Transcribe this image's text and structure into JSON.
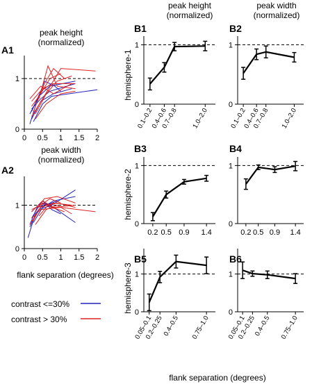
{
  "colors": {
    "low": "#2222bb",
    "high": "#dd2222",
    "axis": "#000000",
    "ref": "#000000"
  },
  "figure": {
    "col_titles": {
      "height": "peak height\n(normalized)",
      "width": "peak width\n(normalized)"
    },
    "row_titles": [
      "hemisphere-1",
      "hemisphere-2",
      "hemisphere-3"
    ],
    "xlabel_left": "flank separation (degrees)",
    "xlabel_right": "flank separation (degrees)",
    "legend": [
      {
        "label": "contrast <=30%",
        "color": "#2222bb"
      },
      {
        "label": "contrast  > 30%",
        "color": "#dd2222"
      }
    ]
  },
  "chart_data": [
    {
      "id": "A1",
      "label": "A1",
      "type": "line",
      "title": "peak height\n(normalized)",
      "xlim": [
        0,
        2
      ],
      "ylim": [
        0,
        1.4
      ],
      "xticks": [
        0,
        0.5,
        1,
        1.5,
        2
      ],
      "xtick_labels": [
        "0",
        "0.5",
        "1",
        "1.5",
        "2"
      ],
      "yticks": [
        0,
        1
      ],
      "ytick_labels": [
        "0",
        "1"
      ],
      "ref": 1,
      "series": [
        {
          "group": "low",
          "x": [
            0.15,
            0.4,
            0.7,
            1.4
          ],
          "y": [
            0.3,
            0.65,
            0.85,
            0.95
          ]
        },
        {
          "group": "low",
          "x": [
            0.2,
            0.45,
            0.8,
            1.3
          ],
          "y": [
            0.2,
            0.55,
            0.7,
            0.8
          ]
        },
        {
          "group": "low",
          "x": [
            0.25,
            0.5,
            0.75,
            2.0
          ],
          "y": [
            0.15,
            0.5,
            0.65,
            0.78
          ]
        },
        {
          "group": "low",
          "x": [
            0.2,
            0.45,
            0.75,
            1.0
          ],
          "y": [
            0.35,
            0.75,
            0.9,
            0.75
          ]
        },
        {
          "group": "low",
          "x": [
            0.15,
            0.3,
            0.55,
            0.85
          ],
          "y": [
            0.1,
            0.45,
            0.95,
            0.85
          ]
        },
        {
          "group": "low",
          "x": [
            0.2,
            0.45,
            0.7,
            1.4
          ],
          "y": [
            0.4,
            0.6,
            0.75,
            0.9
          ]
        },
        {
          "group": "high",
          "x": [
            0.2,
            0.5,
            0.8,
            1.4
          ],
          "y": [
            0.55,
            0.8,
            0.9,
            0.9
          ]
        },
        {
          "group": "high",
          "x": [
            0.3,
            0.6,
            0.9,
            1.3
          ],
          "y": [
            0.3,
            0.7,
            0.95,
            1.05
          ]
        },
        {
          "group": "high",
          "x": [
            0.2,
            0.45,
            0.7,
            1.0
          ],
          "y": [
            0.45,
            0.7,
            1.0,
            1.1
          ]
        },
        {
          "group": "high",
          "x": [
            0.25,
            0.55,
            0.8,
            1.1
          ],
          "y": [
            0.35,
            0.9,
            1.2,
            1.0
          ]
        },
        {
          "group": "high",
          "x": [
            0.4,
            0.65,
            0.9,
            1.4
          ],
          "y": [
            0.6,
            1.25,
            0.85,
            0.8
          ]
        },
        {
          "group": "high",
          "x": [
            0.2,
            0.5,
            1.0,
            1.95
          ],
          "y": [
            0.25,
            0.6,
            1.2,
            1.15
          ]
        },
        {
          "group": "high",
          "x": [
            0.3,
            0.6,
            1.0,
            1.4
          ],
          "y": [
            0.2,
            0.5,
            0.7,
            0.75
          ]
        },
        {
          "group": "high",
          "x": [
            0.15,
            0.45,
            0.8,
            1.3
          ],
          "y": [
            0.6,
            0.85,
            0.7,
            0.9
          ]
        }
      ]
    },
    {
      "id": "A2",
      "label": "A2",
      "type": "line",
      "title": "peak width\n(normalized)",
      "xlim": [
        0,
        2
      ],
      "ylim": [
        0,
        1.6
      ],
      "xticks": [
        0,
        0.5,
        1,
        1.5,
        2
      ],
      "xtick_labels": [
        "0",
        "0.5",
        "1",
        "1.5",
        "2"
      ],
      "yticks": [
        0,
        1
      ],
      "ytick_labels": [
        "0",
        "1"
      ],
      "ref": 1,
      "series": [
        {
          "group": "low",
          "x": [
            0.15,
            0.4,
            0.75,
            1.4
          ],
          "y": [
            0.5,
            0.9,
            1.0,
            1.35
          ]
        },
        {
          "group": "low",
          "x": [
            0.2,
            0.45,
            0.8,
            1.4
          ],
          "y": [
            0.7,
            1.05,
            0.95,
            0.6
          ]
        },
        {
          "group": "low",
          "x": [
            0.2,
            0.5,
            0.75,
            1.0
          ],
          "y": [
            0.85,
            1.1,
            0.9,
            0.8
          ]
        },
        {
          "group": "low",
          "x": [
            0.1,
            0.3,
            0.55,
            0.8
          ],
          "y": [
            0.25,
            0.8,
            1.05,
            0.95
          ]
        },
        {
          "group": "low",
          "x": [
            0.25,
            0.5,
            0.8,
            1.4
          ],
          "y": [
            0.6,
            0.95,
            1.1,
            1.2
          ]
        },
        {
          "group": "low",
          "x": [
            0.15,
            0.35,
            0.6,
            0.9
          ],
          "y": [
            0.55,
            0.95,
            1.0,
            1.1
          ]
        },
        {
          "group": "high",
          "x": [
            0.2,
            0.45,
            0.7,
            1.0
          ],
          "y": [
            0.9,
            1.0,
            1.15,
            1.05
          ]
        },
        {
          "group": "high",
          "x": [
            0.3,
            0.6,
            0.9,
            1.3
          ],
          "y": [
            0.55,
            0.9,
            1.0,
            0.8
          ]
        },
        {
          "group": "high",
          "x": [
            0.2,
            0.5,
            0.8,
            1.4
          ],
          "y": [
            0.85,
            1.1,
            0.95,
            1.0
          ]
        },
        {
          "group": "high",
          "x": [
            0.25,
            0.5,
            0.75,
            1.1
          ],
          "y": [
            0.65,
            1.05,
            0.95,
            0.85
          ]
        },
        {
          "group": "high",
          "x": [
            0.3,
            0.55,
            0.9,
            1.4
          ],
          "y": [
            0.85,
            1.15,
            1.2,
            1.05
          ]
        },
        {
          "group": "high",
          "x": [
            0.2,
            0.45,
            1.0,
            1.95
          ],
          "y": [
            0.7,
            0.9,
            0.95,
            0.85
          ]
        },
        {
          "group": "high",
          "x": [
            0.15,
            0.45,
            0.8,
            1.3
          ],
          "y": [
            0.55,
            0.95,
            1.05,
            1.0
          ]
        },
        {
          "group": "high",
          "x": [
            0.4,
            0.65,
            0.9,
            1.4
          ],
          "y": [
            0.75,
            1.0,
            1.05,
            0.95
          ]
        }
      ]
    },
    {
      "id": "B1",
      "label": "B1",
      "type": "line",
      "categories": [
        "0.1–0.2",
        "0.4–0.6",
        "0.7–0.8",
        "1.0–2.0"
      ],
      "x": [
        0.15,
        0.5,
        0.75,
        1.5
      ],
      "xlim": [
        0,
        1.75
      ],
      "ylim": [
        0,
        1.1
      ],
      "values": [
        0.34,
        0.62,
        0.97,
        0.98
      ],
      "err": [
        0.1,
        0.08,
        0.07,
        0.08
      ],
      "yticks": [
        0,
        1
      ],
      "ytick_labels": [
        "0",
        "1"
      ],
      "ref": 1,
      "rotate_ticks": true
    },
    {
      "id": "B2",
      "label": "B2",
      "type": "line",
      "categories": [
        "0.1–0.2",
        "0.4–0.6",
        "0.7–0.8",
        "1.0–2.0"
      ],
      "x": [
        0.15,
        0.5,
        0.75,
        1.5
      ],
      "xlim": [
        0,
        1.75
      ],
      "ylim": [
        0,
        1.1
      ],
      "values": [
        0.52,
        0.84,
        0.88,
        0.79
      ],
      "err": [
        0.1,
        0.09,
        0.1,
        0.08
      ],
      "yticks": [
        0,
        1
      ],
      "ytick_labels": [
        "0",
        "1"
      ],
      "ref": 1,
      "rotate_ticks": true
    },
    {
      "id": "B3",
      "label": "B3",
      "type": "line",
      "categories": [
        "0.2",
        "0.5",
        "0.9",
        "1.4"
      ],
      "x": [
        0.2,
        0.5,
        0.9,
        1.4
      ],
      "xlim": [
        0,
        1.6
      ],
      "ylim": [
        0,
        1.1
      ],
      "values": [
        0.12,
        0.5,
        0.72,
        0.78
      ],
      "err": [
        0.07,
        0.06,
        0.04,
        0.05
      ],
      "yticks": [
        0,
        1
      ],
      "ytick_labels": [
        "0",
        "1"
      ],
      "ref": 1,
      "rotate_ticks": false
    },
    {
      "id": "B4",
      "label": "B4",
      "type": "line",
      "categories": [
        "0.2",
        "0.5",
        "0.9",
        "1.4"
      ],
      "x": [
        0.2,
        0.5,
        0.9,
        1.4
      ],
      "xlim": [
        0,
        1.6
      ],
      "ylim": [
        0,
        1.1
      ],
      "values": [
        0.68,
        0.97,
        0.93,
        0.99
      ],
      "err": [
        0.09,
        0.04,
        0.05,
        0.08
      ],
      "yticks": [
        0,
        1
      ],
      "ytick_labels": [
        "0",
        "1"
      ],
      "ref": 1,
      "rotate_ticks": false
    },
    {
      "id": "B5",
      "label": "B5",
      "type": "line",
      "categories": [
        "0.05–0.1",
        "0.2–0.25",
        "0.4–0.5",
        "0.75–1.0"
      ],
      "x": [
        0.075,
        0.225,
        0.45,
        0.875
      ],
      "xlim": [
        0,
        1.0
      ],
      "ylim": [
        0,
        1.6
      ],
      "values": [
        0.25,
        0.92,
        1.33,
        1.23
      ],
      "err": [
        0.22,
        0.15,
        0.17,
        0.22
      ],
      "yticks": [
        0,
        1
      ],
      "ytick_labels": [
        "0",
        "1"
      ],
      "ref": 1,
      "rotate_ticks": true
    },
    {
      "id": "B6",
      "label": "B6",
      "type": "line",
      "categories": [
        "0.05–0.1",
        "0.2–0.25",
        "0.4–0.5",
        "0.75–1.0"
      ],
      "x": [
        0.075,
        0.225,
        0.45,
        0.875
      ],
      "xlim": [
        0,
        1.0
      ],
      "ylim": [
        0,
        1.6
      ],
      "values": [
        1.1,
        1.01,
        0.98,
        0.88
      ],
      "err": [
        0.22,
        0.07,
        0.1,
        0.13
      ],
      "yticks": [
        0,
        1
      ],
      "ytick_labels": [
        "0",
        "1"
      ],
      "ref": 1,
      "rotate_ticks": true
    }
  ]
}
